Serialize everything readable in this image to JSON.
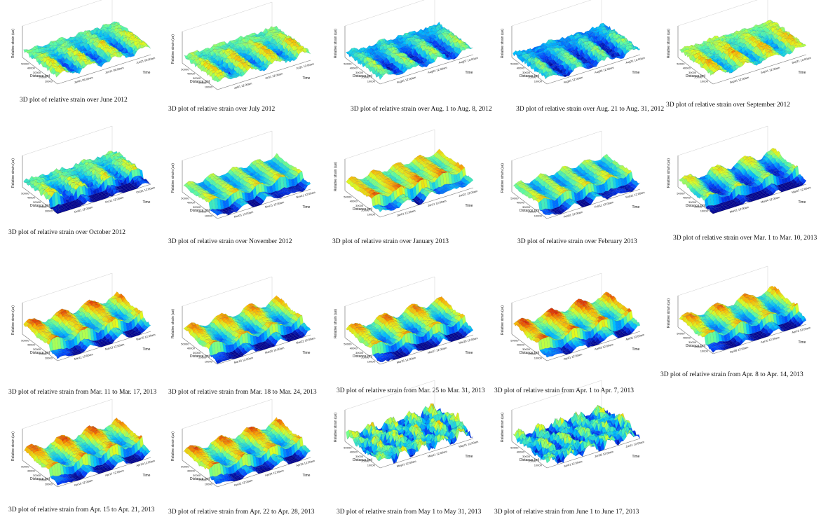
{
  "colors": {
    "strain_colormap": [
      "#00008f",
      "#0040ff",
      "#00c0ff",
      "#60ffa0",
      "#e0ff20",
      "#ffb000",
      "#e02000"
    ]
  },
  "chart_data": [
    {
      "type": "surface3d",
      "caption": "3D plot of relative strain over June 2012",
      "zlabel": "Relative strain (ue)",
      "xlabel": "Distance (m)",
      "ylabel": "Time",
      "x_ticks": [
        "10000",
        "20000",
        "30000",
        "40000",
        "50000"
      ],
      "time_ticks": [
        "Jun01 06:00am",
        "Jun11 06:00am",
        "Jun21 06:00am"
      ],
      "style": "banded",
      "base": 0.45,
      "low_zone": false
    },
    {
      "type": "surface3d",
      "caption": "3D plot of relative strain over July 2012",
      "zlabel": "Relative strain (ue)",
      "xlabel": "Distance (m)",
      "ylabel": "Time",
      "x_ticks": [
        "10000",
        "20000",
        "30000",
        "40000",
        "50000"
      ],
      "time_ticks": [
        "Jul01 12:00am",
        "Jul11 12:00am",
        "Jul21 12:00am"
      ],
      "style": "banded",
      "base": 0.5,
      "low_zone": false
    },
    {
      "type": "surface3d",
      "caption": "3D plot of relative strain over Aug. 1 to Aug. 8, 2012",
      "zlabel": "Relative strain (ue)",
      "xlabel": "Distance (m)",
      "ylabel": "Time",
      "x_ticks": [
        "10000",
        "20000",
        "30000",
        "40000",
        "50000"
      ],
      "time_ticks": [
        "Aug01 12:00am",
        "Aug04 12:00am",
        "Aug07 12:00am"
      ],
      "style": "banded",
      "base": 0.35,
      "low_zone": false
    },
    {
      "type": "surface3d",
      "caption": "3D plot of relative strain over Aug. 21 to Aug. 31, 2012",
      "zlabel": "Relative strain (ue)",
      "xlabel": "Distance (m)",
      "ylabel": "Time",
      "x_ticks": [
        "10000",
        "20000",
        "30000",
        "40000",
        "50000"
      ],
      "time_ticks": [
        "Aug21 12:00am",
        "Aug26 12:00am",
        "Aug31 12:00am"
      ],
      "style": "banded",
      "base": 0.3,
      "low_zone": false
    },
    {
      "type": "surface3d",
      "caption": "3D plot of relative strain over September 2012",
      "zlabel": "Relative strain (ue)",
      "xlabel": "Distance (m)",
      "ylabel": "Time",
      "x_ticks": [
        "10000",
        "20000",
        "30000",
        "40000",
        "50000"
      ],
      "time_ticks": [
        "Sep01 12:00am",
        "Sep11 12:00am",
        "Sep21 12:00am"
      ],
      "style": "banded",
      "base": 0.55,
      "low_zone": false
    },
    {
      "type": "surface3d",
      "caption": "3D plot of relative strain over October 2012",
      "zlabel": "Relative strain (ue)",
      "xlabel": "Distance (m)",
      "ylabel": "Time",
      "x_ticks": [
        "10000",
        "20000",
        "30000",
        "40000",
        "50000"
      ],
      "time_ticks": [
        "Oct01 12:00am",
        "Oct11 12:00am",
        "Oct21 12:00am"
      ],
      "style": "banded",
      "base": 0.45,
      "low_zone": true
    },
    {
      "type": "surface3d",
      "caption": "3D plot of relative strain over November 2012",
      "zlabel": "Relative strain (ue)",
      "xlabel": "Distance (m)",
      "ylabel": "Time",
      "x_ticks": [
        "10000",
        "20000",
        "30000",
        "40000",
        "50000"
      ],
      "time_ticks": [
        "Nov01 12:00am",
        "Nov11 12:00am",
        "Nov21 12:00am"
      ],
      "style": "smooth",
      "base": 0.55,
      "low_zone": true
    },
    {
      "type": "surface3d",
      "caption": "3D plot of relative strain over January 2013",
      "zlabel": "Relative strain (ue)",
      "xlabel": "Distance (m)",
      "ylabel": "Time",
      "x_ticks": [
        "10000",
        "20000",
        "30000",
        "40000",
        "50000"
      ],
      "time_ticks": [
        "Jan01 12:00am",
        "Jan11 12:00am",
        "Jan21 12:00am"
      ],
      "style": "smooth",
      "base": 0.72,
      "low_zone": true
    },
    {
      "type": "surface3d",
      "caption": "3D plot of relative strain over February 2013",
      "zlabel": "Relative strain (ue)",
      "xlabel": "Distance (m)",
      "ylabel": "Time",
      "x_ticks": [
        "10000",
        "20000",
        "30000",
        "40000",
        "50000"
      ],
      "time_ticks": [
        "Feb01 12:00am",
        "Feb11 12:00am",
        "Feb21 12:00am"
      ],
      "style": "smooth",
      "base": 0.55,
      "low_zone": true
    },
    {
      "type": "surface3d",
      "caption": "3D plot of relative strain over Mar. 1 to Mar. 10, 2013",
      "zlabel": "Relative strain (ue)",
      "xlabel": "Distance (m)",
      "ylabel": "Time",
      "x_ticks": [
        "10000",
        "20000",
        "30000",
        "40000",
        "50000"
      ],
      "time_ticks": [
        "Mar01 12:00am",
        "Mar04 12:00am",
        "Mar07 12:00am"
      ],
      "style": "wavy",
      "base": 0.4,
      "low_zone": true
    },
    {
      "type": "surface3d",
      "caption": "3D plot of relative strain from Mar. 11 to Mar. 17, 2013",
      "zlabel": "Relative strain (ue)",
      "xlabel": "Distance (m)",
      "ylabel": "Time",
      "x_ticks": [
        "10000",
        "20000",
        "30000",
        "40000",
        "50000"
      ],
      "time_ticks": [
        "Mar11 12:00am",
        "Mar13 12:00am",
        "Mar15 12:00am"
      ],
      "style": "wavy",
      "base": 0.6,
      "low_zone": true
    },
    {
      "type": "surface3d",
      "caption": "3D plot of relative strain from Mar. 18 to Mar. 24, 2013",
      "zlabel": "Relative strain (ue)",
      "xlabel": "Distance (m)",
      "ylabel": "Time",
      "x_ticks": [
        "10000",
        "20000",
        "30000",
        "40000",
        "50000"
      ],
      "time_ticks": [
        "Mar18 12:00am",
        "Mar20 12:00am",
        "Mar22 12:00am"
      ],
      "style": "wavy",
      "base": 0.55,
      "low_zone": true
    },
    {
      "type": "surface3d",
      "caption": "3D plot of relative strain from Mar. 25 to Mar. 31, 2013",
      "zlabel": "Relative strain (ue)",
      "xlabel": "Distance (m)",
      "ylabel": "Time",
      "x_ticks": [
        "10000",
        "20000",
        "30000",
        "40000",
        "50000"
      ],
      "time_ticks": [
        "Mar25 12:00am",
        "Mar27 12:00am",
        "Mar29 12:00am"
      ],
      "style": "wavy",
      "base": 0.55,
      "low_zone": true
    },
    {
      "type": "surface3d",
      "caption": "3D plot of relative strain from Apr. 1 to Apr. 7, 2013",
      "zlabel": "Relative strain (ue)",
      "xlabel": "Distance (m)",
      "ylabel": "Time",
      "x_ticks": [
        "10000",
        "20000",
        "30000",
        "40000",
        "50000"
      ],
      "time_ticks": [
        "Apr01 12:00am",
        "Apr03 12:00am",
        "Apr05 12:00am"
      ],
      "style": "wavy",
      "base": 0.65,
      "low_zone": true
    },
    {
      "type": "surface3d",
      "caption": "3D plot of relative strain from Apr. 8 to Apr. 14, 2013",
      "zlabel": "Relative strain (ue)",
      "xlabel": "Distance (m)",
      "ylabel": "Time",
      "x_ticks": [
        "10000",
        "20000",
        "30000",
        "40000",
        "50000"
      ],
      "time_ticks": [
        "Apr08 12:00am",
        "Apr10 12:00am",
        "Apr12 12:00am"
      ],
      "style": "wavy",
      "base": 0.55,
      "low_zone": true
    },
    {
      "type": "surface3d",
      "caption": "3D plot of relative strain from Apr. 15 to Apr. 21, 2013",
      "zlabel": "Relative strain (ue)",
      "xlabel": "Distance (m)",
      "ylabel": "Time",
      "x_ticks": [
        "10000",
        "20000",
        "30000",
        "40000",
        "50000"
      ],
      "time_ticks": [
        "Apr15 12:00am",
        "Apr17 12:00am",
        "Apr19 12:00am"
      ],
      "style": "wavy",
      "base": 0.6,
      "low_zone": true
    },
    {
      "type": "surface3d",
      "caption": "3D plot of relative strain from Apr. 22 to Apr. 28, 2013",
      "zlabel": "Relative strain (ue)",
      "xlabel": "Distance (m)",
      "ylabel": "Time",
      "x_ticks": [
        "10000",
        "20000",
        "30000",
        "40000",
        "50000"
      ],
      "time_ticks": [
        "Apr22 12:00am",
        "Apr24 12:00am",
        "Apr26 12:00am"
      ],
      "style": "wavy",
      "base": 0.6,
      "low_zone": true
    },
    {
      "type": "surface3d",
      "caption": "3D plot of relative strain from May 1 to May 31, 2013",
      "zlabel": "Relative strain (ue)",
      "xlabel": "Distance (m)",
      "ylabel": "Time",
      "x_ticks": [
        "10000",
        "20000",
        "30000",
        "40000",
        "50000"
      ],
      "time_ticks": [
        "May01 12:00am",
        "May11 12:00am",
        "May21 12:00am"
      ],
      "style": "noisy",
      "base": 0.4,
      "low_zone": false
    },
    {
      "type": "surface3d",
      "caption": "3D plot of relative strain from June 1 to June 17, 2013",
      "zlabel": "Relative strain (ue)",
      "xlabel": "Distance (m)",
      "ylabel": "Time",
      "x_ticks": [
        "10000",
        "20000",
        "30000",
        "40000",
        "50000"
      ],
      "time_ticks": [
        "Jun01 12:00am",
        "Jun06 12:00am",
        "Jun11 12:00am"
      ],
      "style": "noisy",
      "base": 0.35,
      "low_zone": false
    }
  ]
}
